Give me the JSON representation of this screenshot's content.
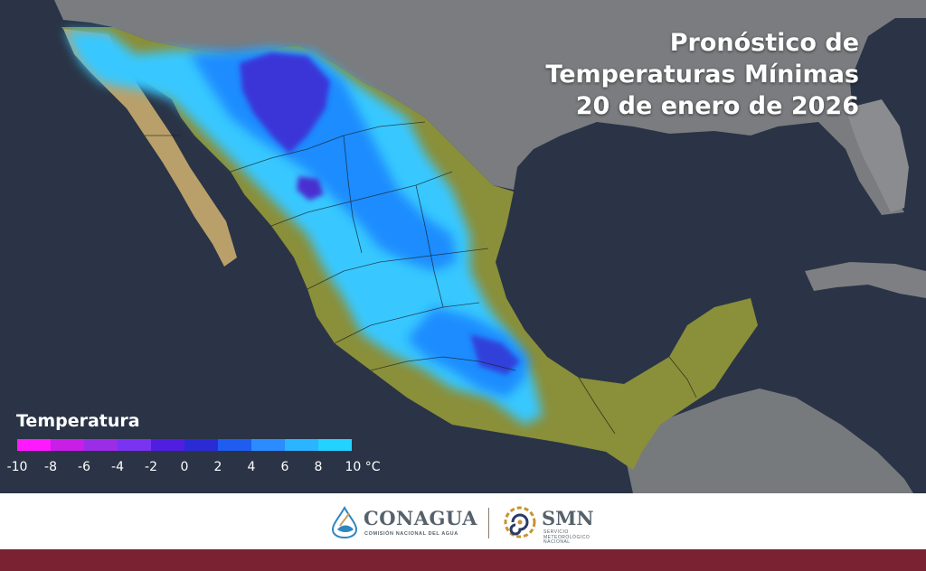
{
  "title": {
    "line1": "Pronóstico de",
    "line2": "Temperaturas Mínimas",
    "line3": "20 de enero de 2026"
  },
  "legend": {
    "title": "Temperatura",
    "unit": "°C",
    "ticks": [
      "-10",
      "-8",
      "-6",
      "-4",
      "-2",
      "0",
      "2",
      "4",
      "6",
      "8",
      "10 °C"
    ],
    "colors": [
      "#ff19ff",
      "#c81ee6",
      "#9b2de6",
      "#7a33f0",
      "#4f1ee0",
      "#2b2bd6",
      "#1f5cf0",
      "#2b8cff",
      "#2bb4ff",
      "#22d2ff",
      "#28e6f0"
    ]
  },
  "colors": {
    "ocean": "#2a3446",
    "land_outside": "#7d7d7d",
    "land_warm": "#8a8f3a",
    "cold_light": "#38c8ff",
    "cold_medium": "#1e8cff",
    "cold_deep": "#2b2bd6",
    "footer_bar": "#7a2132"
  },
  "footer": {
    "conagua_name": "CONAGUA",
    "conagua_sub": "COMISIÓN NACIONAL DEL AGUA",
    "smn_name": "SMN",
    "smn_sub": "SERVICIO METEOROLÓGICO NACIONAL"
  }
}
